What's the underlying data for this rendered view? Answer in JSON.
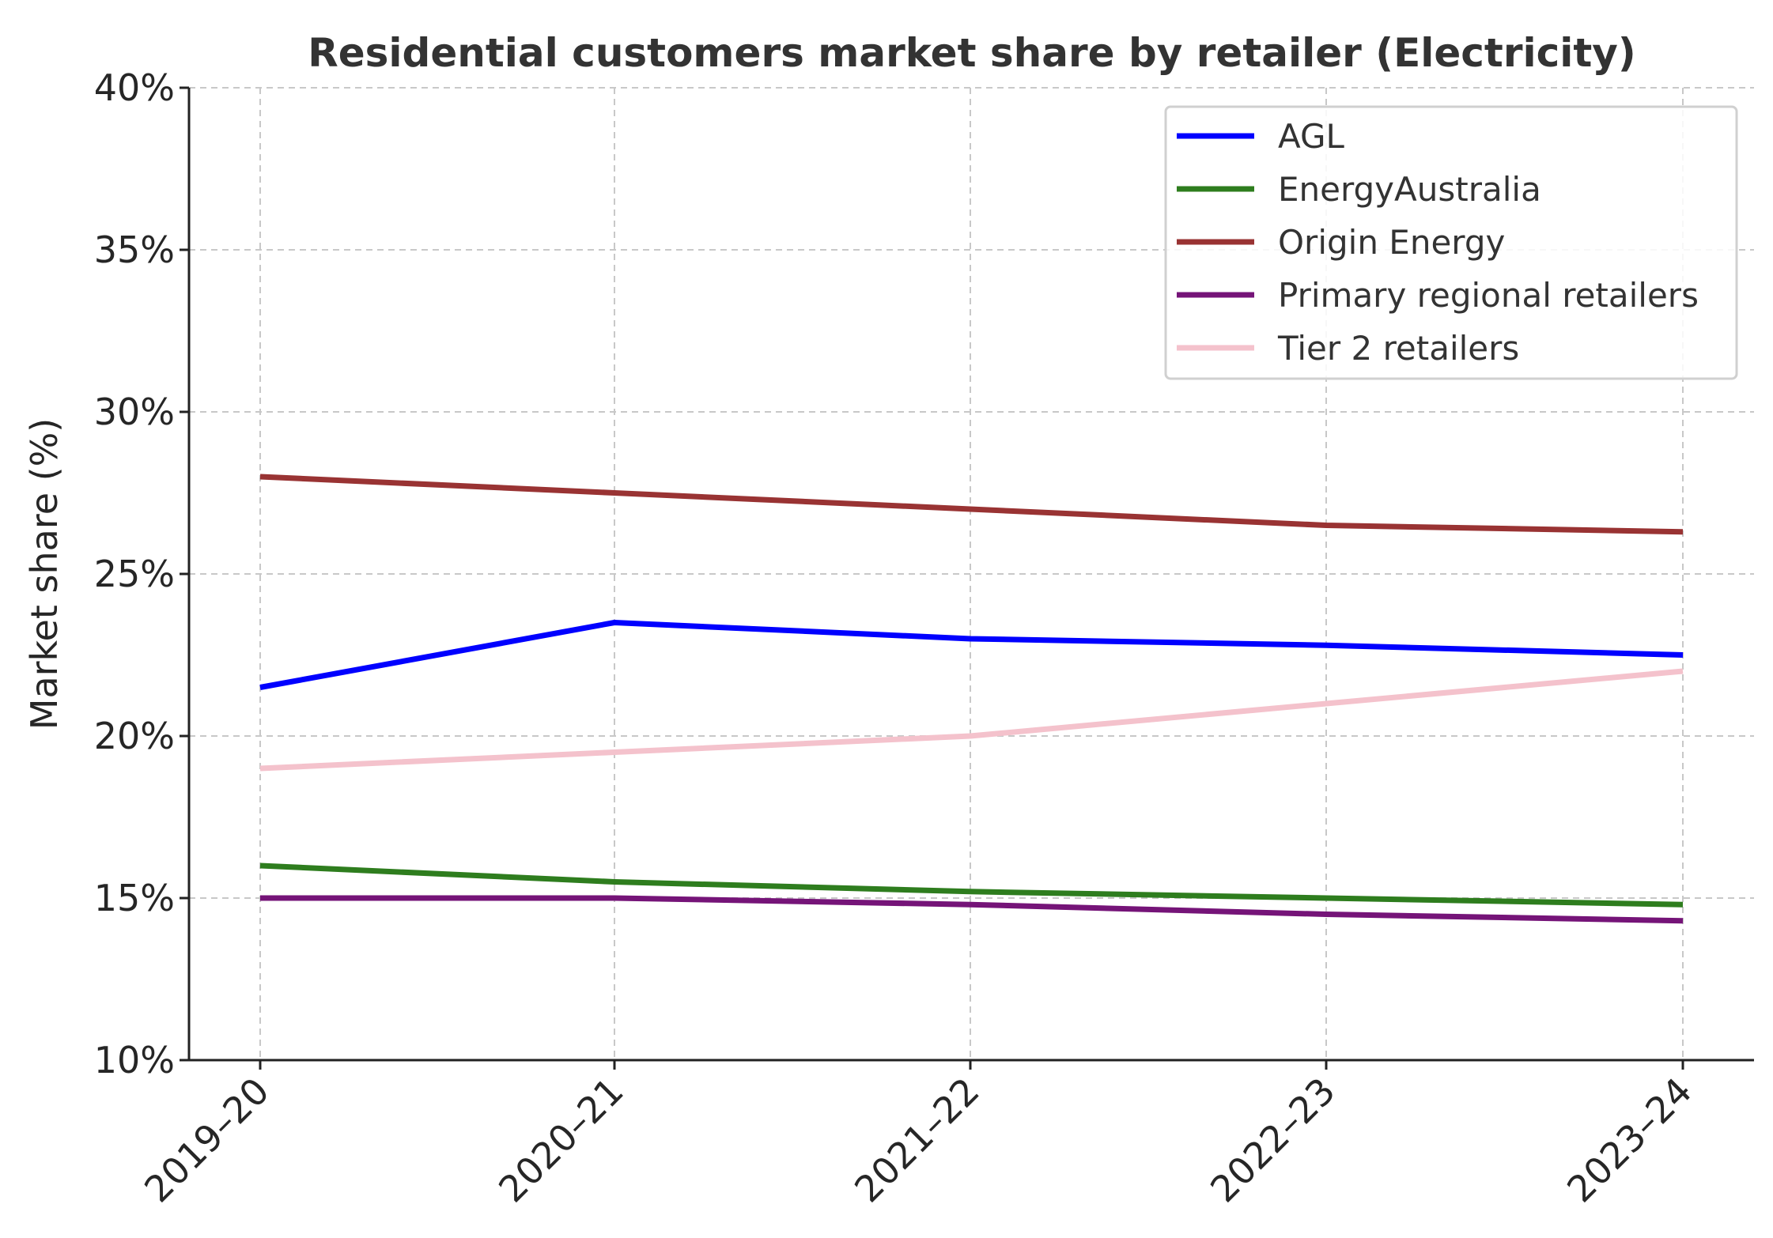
{
  "chart_data": {
    "type": "line",
    "title": "Residential customers market share by retailer (Electricity)",
    "xlabel": "",
    "ylabel": "Market share (%)",
    "categories": [
      "2019–20",
      "2020–21",
      "2021–22",
      "2022–23",
      "2023–24"
    ],
    "ylim": [
      10,
      40
    ],
    "yticks": [
      10,
      15,
      20,
      25,
      30,
      35,
      40
    ],
    "ytick_labels": [
      "10%",
      "15%",
      "20%",
      "25%",
      "30%",
      "35%",
      "40%"
    ],
    "grid": true,
    "legend_position": "top-right",
    "series": [
      {
        "name": "AGL",
        "color": "#0000ff",
        "values": [
          21.5,
          23.5,
          23.0,
          22.8,
          22.5
        ]
      },
      {
        "name": "EnergyAustralia",
        "color": "#2e7d1e",
        "values": [
          16.0,
          15.5,
          15.2,
          15.0,
          14.8
        ]
      },
      {
        "name": "Origin Energy",
        "color": "#993333",
        "values": [
          28.0,
          27.5,
          27.0,
          26.5,
          26.3
        ]
      },
      {
        "name": "Primary regional retailers",
        "color": "#751478",
        "values": [
          15.0,
          15.0,
          14.8,
          14.5,
          14.3
        ]
      },
      {
        "name": "Tier 2 retailers",
        "color": "#f4c2cc",
        "values": [
          19.0,
          19.5,
          20.0,
          21.0,
          22.0
        ]
      }
    ]
  }
}
